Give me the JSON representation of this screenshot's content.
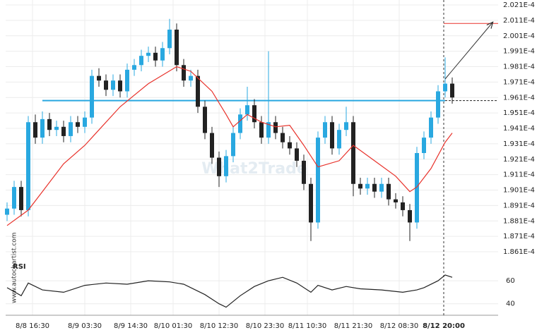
{
  "chart_data": {
    "type": "candlestick",
    "watermark": "What2Trade",
    "source": "www.autochartist.com",
    "x": [
      0,
      1,
      2,
      3,
      4,
      5,
      6,
      7,
      8,
      9,
      10,
      11,
      12,
      13,
      14,
      15,
      16,
      17,
      18,
      19,
      20,
      21,
      22,
      23,
      24,
      25,
      26,
      27,
      28,
      29,
      30,
      31,
      32,
      33,
      34,
      35,
      36,
      37,
      38,
      39,
      40,
      41,
      42,
      43,
      44,
      45,
      46,
      47,
      48,
      49,
      50,
      51,
      52,
      53,
      54,
      55,
      56,
      57,
      58,
      59,
      60,
      61,
      62,
      63
    ],
    "open": [
      0.0001885,
      0.0001889,
      0.0001903,
      0.0001888,
      0.0001945,
      0.0001935,
      0.0001947,
      0.000194,
      0.0001942,
      0.0001936,
      0.0001945,
      0.0001942,
      0.0001948,
      0.0001975,
      0.0001972,
      0.0001966,
      0.0001972,
      0.0001965,
      0.0001979,
      0.0001982,
      0.0001988,
      0.000199,
      0.0001985,
      0.0001993,
      0.0002005,
      0.0001982,
      0.0001972,
      0.0001975,
      0.0001955,
      0.0001938,
      0.0001922,
      0.000191,
      0.0001923,
      0.0001938,
      0.000195,
      0.0001956,
      0.0001945,
      0.0001935,
      0.0001945,
      0.0001938,
      0.0001932,
      0.0001928,
      0.000192,
      0.0001905,
      0.000188,
      0.0001935,
      0.0001945,
      0.0001928,
      0.000194,
      0.0001945,
      0.0001905,
      0.0001902,
      0.0001905,
      0.00019,
      0.0001905,
      0.0001895,
      0.0001893,
      0.0001888,
      0.000188,
      0.0001925,
      0.0001935,
      0.0001948,
      0.0001965,
      0.000197
    ],
    "high": [
      0.0001893,
      0.0001907,
      0.0001907,
      0.0001949,
      0.000195,
      0.0001952,
      0.0001951,
      0.0001946,
      0.0001946,
      0.0001949,
      0.0001949,
      0.0001952,
      0.0001979,
      0.000198,
      0.0001976,
      0.0001976,
      0.0001976,
      0.0001983,
      0.0001986,
      0.0001992,
      0.0001994,
      0.0001994,
      0.0001997,
      0.0002012,
      0.0002009,
      0.0001986,
      0.0001979,
      0.0001979,
      0.0001959,
      0.0001942,
      0.0001926,
      0.0001927,
      0.0001942,
      0.0001954,
      0.0001968,
      0.000196,
      0.0001949,
      0.0001991,
      0.0001949,
      0.0001942,
      0.0001936,
      0.0001932,
      0.0001924,
      0.0001909,
      0.0001939,
      0.0001949,
      0.0001949,
      0.0001944,
      0.0001955,
      0.0001949,
      0.0001909,
      0.0001909,
      0.0001909,
      0.0001909,
      0.0001909,
      0.0001899,
      0.0001897,
      0.0001892,
      0.0001929,
      0.0001939,
      0.0001952,
      0.0001969,
      0.0001987,
      0.0001974
    ],
    "low": [
      0.0001881,
      0.0001885,
      0.0001884,
      0.0001884,
      0.0001931,
      0.0001931,
      0.0001936,
      0.0001936,
      0.0001932,
      0.0001932,
      0.0001938,
      0.0001938,
      0.0001944,
      0.0001968,
      0.0001962,
      0.0001962,
      0.0001961,
      0.0001961,
      0.0001975,
      0.0001978,
      0.0001984,
      0.0001981,
      0.0001981,
      0.0001989,
      0.0001978,
      0.0001968,
      0.0001968,
      0.0001951,
      0.0001934,
      0.0001918,
      0.0001903,
      0.0001906,
      0.0001919,
      0.0001934,
      0.0001946,
      0.0001941,
      0.0001931,
      0.0001931,
      0.0001934,
      0.0001928,
      0.0001924,
      0.0001916,
      0.0001901,
      0.0001868,
      0.0001876,
      0.0001931,
      0.0001924,
      0.0001924,
      0.0001936,
      0.0001897,
      0.0001898,
      0.0001898,
      0.0001896,
      0.0001896,
      0.0001891,
      0.0001889,
      0.0001884,
      0.0001868,
      0.0001876,
      0.0001921,
      0.0001931,
      0.0001944,
      0.0001961,
      0.0001957
    ],
    "close": [
      0.0001889,
      0.0001903,
      0.0001888,
      0.0001945,
      0.0001935,
      0.0001947,
      0.000194,
      0.0001942,
      0.0001936,
      0.0001945,
      0.0001942,
      0.0001948,
      0.0001975,
      0.0001972,
      0.0001966,
      0.0001972,
      0.0001965,
      0.0001979,
      0.0001982,
      0.0001988,
      0.000199,
      0.0001985,
      0.0001993,
      0.0002005,
      0.0001982,
      0.0001972,
      0.0001975,
      0.0001955,
      0.0001938,
      0.0001922,
      0.000191,
      0.0001923,
      0.0001938,
      0.000195,
      0.0001956,
      0.0001945,
      0.0001935,
      0.0001945,
      0.0001938,
      0.0001932,
      0.0001928,
      0.000192,
      0.0001905,
      0.000188,
      0.0001935,
      0.0001945,
      0.0001928,
      0.000194,
      0.0001945,
      0.0001905,
      0.0001902,
      0.0001905,
      0.00019,
      0.0001905,
      0.0001895,
      0.0001893,
      0.0001888,
      0.000188,
      0.0001925,
      0.0001935,
      0.0001948,
      0.0001965,
      0.000197,
      0.0001961
    ],
    "up_color": "#29a8e0",
    "down_color": "#222222",
    "moving_average": {
      "color": "#e8322b",
      "x": [
        0,
        3,
        5,
        8,
        11,
        13,
        16,
        20,
        24,
        26,
        29,
        31,
        32,
        34,
        36,
        38,
        40,
        42,
        44,
        47,
        49,
        52,
        55,
        57,
        58,
        60,
        62,
        63
      ],
      "values": [
        0.0001878,
        0.0001888,
        0.00019,
        0.0001918,
        0.000193,
        0.000194,
        0.0001955,
        0.000197,
        0.0001981,
        0.0001978,
        0.0001965,
        0.000195,
        0.0001942,
        0.000195,
        0.0001945,
        0.0001942,
        0.0001943,
        0.000193,
        0.0001916,
        0.000192,
        0.000193,
        0.000192,
        0.000191,
        0.00019,
        0.0001903,
        0.0001915,
        0.0001932,
        0.0001938
      ]
    },
    "support_level": 0.0001959,
    "support_color": "#29a8e0",
    "target_level": 0.0002009,
    "target_color": "#e8322b",
    "xlim": [
      -0.2,
      69.5
    ],
    "ylim": [
      0.0001861,
      0.0002021
    ],
    "yticks": [
      {
        "value": 0.0002021,
        "label": "2.021E-4"
      },
      {
        "value": 0.0002011,
        "label": "2.011E-4"
      },
      {
        "value": 0.0002001,
        "label": "2.001E-4"
      },
      {
        "value": 0.0001991,
        "label": "1.991E-4"
      },
      {
        "value": 0.0001981,
        "label": "1.981E-4"
      },
      {
        "value": 0.0001971,
        "label": "1.971E-4"
      },
      {
        "value": 0.0001961,
        "label": "1.961E-4"
      },
      {
        "value": 0.0001951,
        "label": "1.951E-4"
      },
      {
        "value": 0.0001941,
        "label": "1.941E-4"
      },
      {
        "value": 0.0001931,
        "label": "1.931E-4"
      },
      {
        "value": 0.0001921,
        "label": "1.921E-4"
      },
      {
        "value": 0.0001911,
        "label": "1.911E-4"
      },
      {
        "value": 0.0001901,
        "label": "1.901E-4"
      },
      {
        "value": 0.0001891,
        "label": "1.891E-4"
      },
      {
        "value": 0.0001881,
        "label": "1.881E-4"
      },
      {
        "value": 0.0001871,
        "label": "1.871E-4"
      },
      {
        "value": 0.0001861,
        "label": "1.861E-4"
      }
    ],
    "xticks": [
      {
        "value": 3.6,
        "label": "8/8 16:30"
      },
      {
        "value": 11,
        "label": "8/9 03:30"
      },
      {
        "value": 17.5,
        "label": "8/9 14:30"
      },
      {
        "value": 23.5,
        "label": "8/10 01:30"
      },
      {
        "value": 30,
        "label": "8/10 12:30"
      },
      {
        "value": 36.5,
        "label": "8/10 23:30"
      },
      {
        "value": 42.5,
        "label": "8/11 10:30"
      },
      {
        "value": 49,
        "label": "8/11 21:30"
      },
      {
        "value": 55.5,
        "label": "8/12 08:30"
      },
      {
        "value": 61.8,
        "label": "8/12 20:00"
      }
    ],
    "rsi": {
      "name": "RSI",
      "color": "#222222",
      "ylim": [
        30,
        76
      ],
      "yticks": [
        60,
        40
      ],
      "x": [
        0,
        2,
        3,
        5,
        8,
        11,
        14,
        17,
        20,
        23,
        25,
        28,
        30,
        31,
        33,
        35,
        37,
        39,
        41,
        43,
        44,
        46,
        48,
        50,
        53,
        56,
        58,
        59,
        61,
        62,
        63
      ],
      "values": [
        54,
        47,
        58,
        52,
        50,
        56,
        58,
        57,
        60,
        59,
        57,
        48,
        40,
        37,
        47,
        55,
        60,
        63,
        58,
        50,
        56,
        52,
        55,
        53,
        52,
        50,
        52,
        54,
        60,
        65,
        63
      ]
    }
  }
}
